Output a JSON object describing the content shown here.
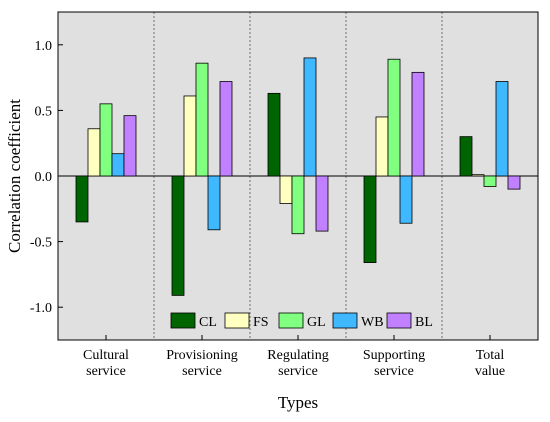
{
  "chart_data": {
    "type": "bar",
    "xlabel": "Types",
    "ylabel": "Correlation coefficient",
    "ylim": [
      -1.25,
      1.25
    ],
    "yticks": [
      "1.0",
      "0.5",
      "0.0",
      "-0.5",
      "-1.0"
    ],
    "ytick_values": [
      1.0,
      0.5,
      0.0,
      -0.5,
      -1.0
    ],
    "categories": [
      [
        "Cultural",
        "service"
      ],
      [
        "Provisioning",
        "service"
      ],
      [
        "Regulating",
        "service"
      ],
      [
        "Supporting",
        "service"
      ],
      [
        "Total",
        "value"
      ]
    ],
    "grid": false,
    "background": "#e0e0e0",
    "legend_position": "bottom-center inside plot",
    "series": [
      {
        "name": "CL",
        "color": "#006400",
        "values": [
          -0.35,
          -0.91,
          0.63,
          -0.66,
          0.3
        ]
      },
      {
        "name": "FS",
        "color": "#ffffc0",
        "values": [
          0.36,
          0.61,
          -0.21,
          0.45,
          0.01
        ]
      },
      {
        "name": "GL",
        "color": "#80ff80",
        "values": [
          0.55,
          0.86,
          -0.44,
          0.89,
          -0.08
        ]
      },
      {
        "name": "WB",
        "color": "#40b8ff",
        "values": [
          0.17,
          -0.41,
          0.9,
          -0.36,
          0.72
        ]
      },
      {
        "name": "BL",
        "color": "#c080ff",
        "values": [
          0.46,
          0.72,
          -0.42,
          0.79,
          -0.1
        ]
      }
    ]
  }
}
